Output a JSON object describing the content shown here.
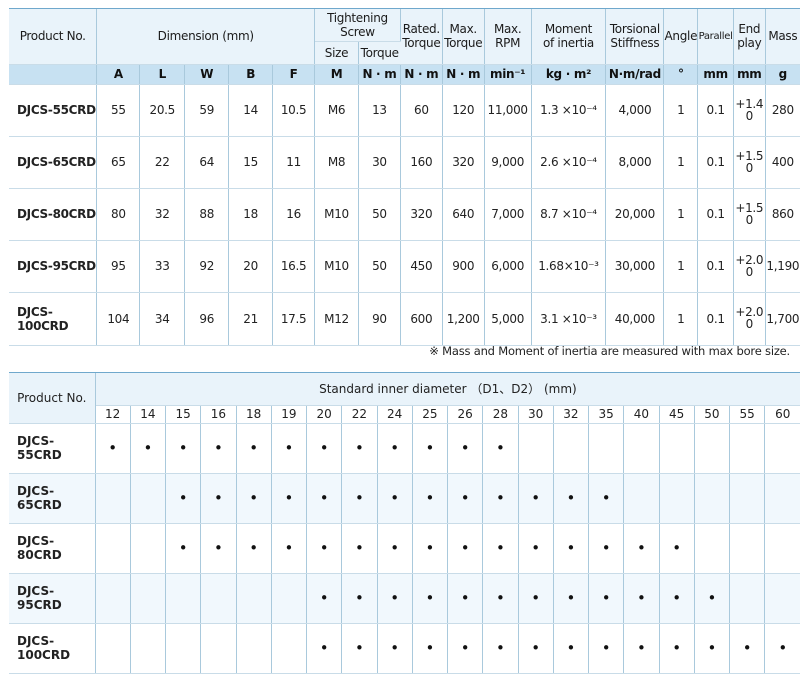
{
  "spec_table": {
    "headers": {
      "product_no": "Product No.",
      "dimension": "Dimension (mm)",
      "tightening_screw": "Tightening Screw",
      "size": "Size",
      "torque": "Torque",
      "rated_torque": "Rated. Torque",
      "max_torque": "Max. Torque",
      "max_rpm": "Max. RPM",
      "moment_of_inertia": "Moment of inertia",
      "torsional_stiffness": "Torsional Stiffness",
      "angle": "Angle",
      "parallel": "Parallel",
      "end_play": "End play",
      "mass": "Mass"
    },
    "units": [
      "A",
      "L",
      "W",
      "B",
      "F",
      "M",
      "N · m",
      "N · m",
      "N · m",
      "min⁻¹",
      "kg · m²",
      "N·m/rad",
      "°",
      "mm",
      "mm",
      "g"
    ],
    "rows": [
      {
        "product": "DJCS-55CRD",
        "A": "55",
        "L": "20.5",
        "W": "59",
        "B": "14",
        "F": "10.5",
        "M": "M6",
        "torque": "13",
        "rated": "60",
        "max": "120",
        "rpm": "11,000",
        "inertia": "1.3 ×10⁻⁴",
        "stiffness": "4,000",
        "angle": "1",
        "parallel": "0.1",
        "endplay_top": "+1.4",
        "endplay_bottom": "0",
        "mass": "280"
      },
      {
        "product": "DJCS-65CRD",
        "A": "65",
        "L": "22",
        "W": "64",
        "B": "15",
        "F": "11",
        "M": "M8",
        "torque": "30",
        "rated": "160",
        "max": "320",
        "rpm": "9,000",
        "inertia": "2.6 ×10⁻⁴",
        "stiffness": "8,000",
        "angle": "1",
        "parallel": "0.1",
        "endplay_top": "+1.5",
        "endplay_bottom": "0",
        "mass": "400"
      },
      {
        "product": "DJCS-80CRD",
        "A": "80",
        "L": "32",
        "W": "88",
        "B": "18",
        "F": "16",
        "M": "M10",
        "torque": "50",
        "rated": "320",
        "max": "640",
        "rpm": "7,000",
        "inertia": "8.7 ×10⁻⁴",
        "stiffness": "20,000",
        "angle": "1",
        "parallel": "0.1",
        "endplay_top": "+1.5",
        "endplay_bottom": "0",
        "mass": "860"
      },
      {
        "product": "DJCS-95CRD",
        "A": "95",
        "L": "33",
        "W": "92",
        "B": "20",
        "F": "16.5",
        "M": "M10",
        "torque": "50",
        "rated": "450",
        "max": "900",
        "rpm": "6,000",
        "inertia": "1.68×10⁻³",
        "stiffness": "30,000",
        "angle": "1",
        "parallel": "0.1",
        "endplay_top": "+2.0",
        "endplay_bottom": "0",
        "mass": "1,190"
      },
      {
        "product": "DJCS-100CRD",
        "A": "104",
        "L": "34",
        "W": "96",
        "B": "21",
        "F": "17.5",
        "M": "M12",
        "torque": "90",
        "rated": "600",
        "max": "1,200",
        "rpm": "5,000",
        "inertia": "3.1 ×10⁻³",
        "stiffness": "40,000",
        "angle": "1",
        "parallel": "0.1",
        "endplay_top": "+2.0",
        "endplay_bottom": "0",
        "mass": "1,700"
      }
    ]
  },
  "note": "※ Mass and Moment of inertia are measured with max bore size.",
  "size_table": {
    "product_no": "Product No.",
    "title": "Standard inner diameter （D1、D2） (mm)",
    "diameters": [
      "12",
      "14",
      "15",
      "16",
      "18",
      "19",
      "20",
      "22",
      "24",
      "25",
      "26",
      "28",
      "30",
      "32",
      "35",
      "40",
      "45",
      "50",
      "55",
      "60"
    ],
    "dot_symbol": "•",
    "rows": [
      {
        "product": "DJCS-55CRD",
        "available": [
          "12",
          "14",
          "15",
          "16",
          "18",
          "19",
          "20",
          "22",
          "24",
          "25",
          "26",
          "28"
        ]
      },
      {
        "product": "DJCS-65CRD",
        "available": [
          "15",
          "16",
          "18",
          "19",
          "20",
          "22",
          "24",
          "25",
          "26",
          "28",
          "30",
          "32",
          "35"
        ]
      },
      {
        "product": "DJCS-80CRD",
        "available": [
          "15",
          "16",
          "18",
          "19",
          "20",
          "22",
          "24",
          "25",
          "26",
          "28",
          "30",
          "32",
          "35",
          "40",
          "45"
        ]
      },
      {
        "product": "DJCS-95CRD",
        "available": [
          "20",
          "22",
          "24",
          "25",
          "26",
          "28",
          "30",
          "32",
          "35",
          "40",
          "45",
          "50"
        ]
      },
      {
        "product": "DJCS-100CRD",
        "available": [
          "20",
          "22",
          "24",
          "25",
          "26",
          "28",
          "30",
          "32",
          "35",
          "40",
          "45",
          "50",
          "55",
          "60"
        ]
      }
    ]
  },
  "colors": {
    "header_bg": "#e9f3fa",
    "unit_bg": "#c7e1f2",
    "row_alt_bg": "#f1f8fd",
    "border": "#a9c9dc"
  }
}
